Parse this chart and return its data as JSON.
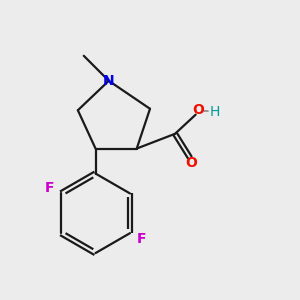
{
  "background_color": "#ececec",
  "bond_color": "#1a1a1a",
  "N_color": "#0000ee",
  "F_color": "#cc00cc",
  "O_color": "#ee1100",
  "OH_color": "#009999",
  "H_color": "#1a1a1a",
  "line_width": 1.6,
  "figsize": [
    3.0,
    3.0
  ],
  "dpi": 100,
  "xlim": [
    0,
    10
  ],
  "ylim": [
    0,
    10
  ]
}
